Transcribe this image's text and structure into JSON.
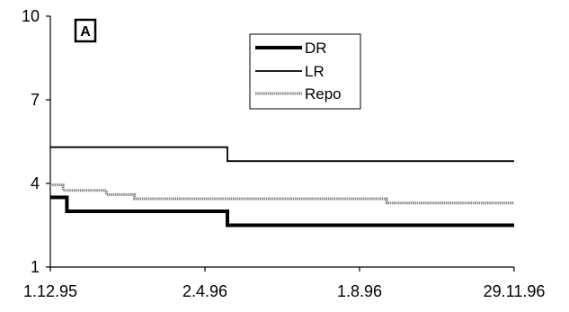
{
  "chart_data": {
    "type": "line",
    "panel_label": "A",
    "ylim": [
      1,
      10
    ],
    "y_ticks": [
      "10",
      "7",
      "4",
      "1"
    ],
    "x_ticks": [
      "1.12.95",
      "2.4.96",
      "1.8.96",
      "29.11.96"
    ],
    "x_domain": [
      "1995-12-01",
      "1996-11-29"
    ],
    "grid": false,
    "legend_position": "top-right",
    "series": [
      {
        "name": "DR",
        "points": [
          [
            "1995-12-01",
            3.5
          ],
          [
            "1995-12-14",
            3.5
          ],
          [
            "1995-12-14",
            3.0
          ],
          [
            "1996-04-18",
            3.0
          ],
          [
            "1996-04-18",
            2.5
          ],
          [
            "1996-11-29",
            2.5
          ]
        ]
      },
      {
        "name": "LR",
        "points": [
          [
            "1995-12-01",
            5.3
          ],
          [
            "1996-04-18",
            5.3
          ],
          [
            "1996-04-18",
            4.8
          ],
          [
            "1996-11-29",
            4.8
          ]
        ]
      },
      {
        "name": "Repo",
        "points": [
          [
            "1995-12-01",
            3.95
          ],
          [
            "1995-12-11",
            3.95
          ],
          [
            "1995-12-11",
            3.75
          ],
          [
            "1996-01-14",
            3.75
          ],
          [
            "1996-01-14",
            3.6
          ],
          [
            "1996-02-05",
            3.6
          ],
          [
            "1996-02-05",
            3.45
          ],
          [
            "1996-08-21",
            3.45
          ],
          [
            "1996-08-21",
            3.3
          ],
          [
            "1996-11-29",
            3.3
          ]
        ]
      }
    ]
  }
}
